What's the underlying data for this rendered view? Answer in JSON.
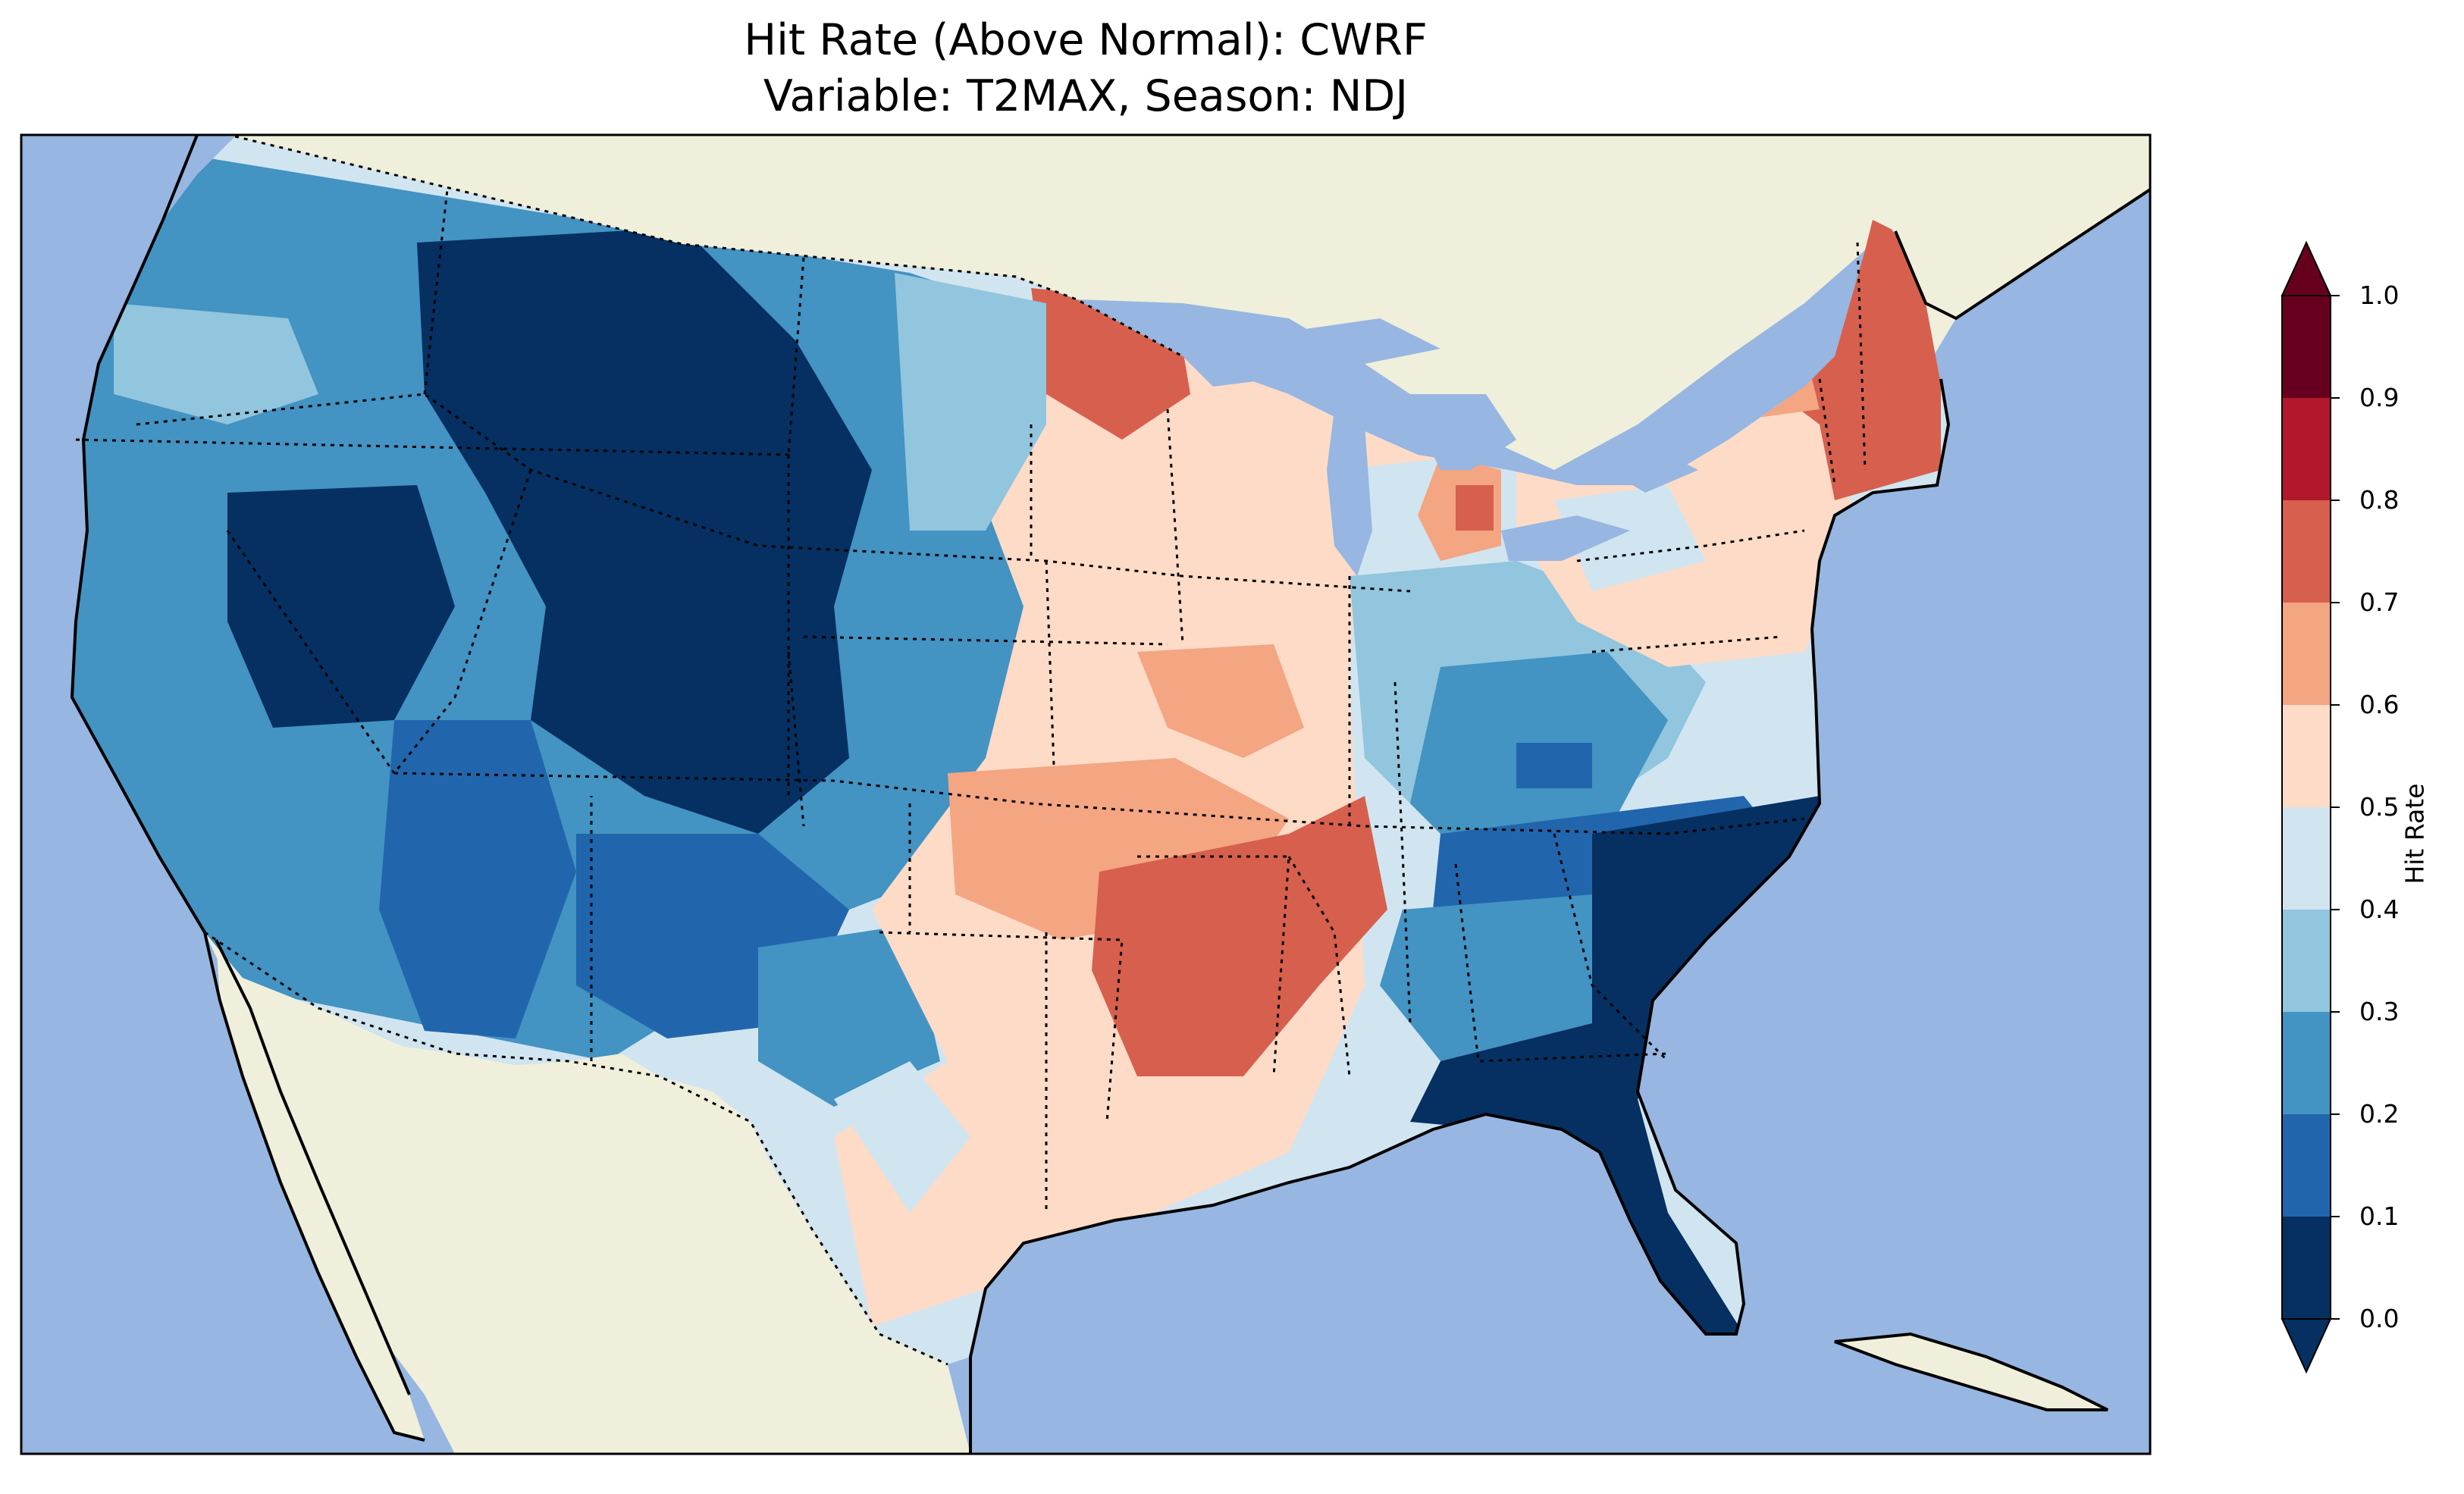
{
  "title": {
    "line1": "Hit Rate (Above Normal): CWRF",
    "line2": "Variable: T2MAX, Season: NDJ"
  },
  "colorbar": {
    "label": "Hit Rate",
    "ticks": [
      "0.0",
      "0.1",
      "0.2",
      "0.3",
      "0.4",
      "0.5",
      "0.6",
      "0.7",
      "0.8",
      "0.9",
      "1.0"
    ],
    "bins": [
      {
        "min": 0.0,
        "max": 0.1,
        "color": "#053061"
      },
      {
        "min": 0.1,
        "max": 0.2,
        "color": "#2166ac"
      },
      {
        "min": 0.2,
        "max": 0.3,
        "color": "#4393c3"
      },
      {
        "min": 0.3,
        "max": 0.4,
        "color": "#92c5de"
      },
      {
        "min": 0.4,
        "max": 0.5,
        "color": "#d1e5f0"
      },
      {
        "min": 0.5,
        "max": 0.6,
        "color": "#fddbc7"
      },
      {
        "min": 0.6,
        "max": 0.7,
        "color": "#f4a582"
      },
      {
        "min": 0.7,
        "max": 0.8,
        "color": "#d6604d"
      },
      {
        "min": 0.8,
        "max": 0.9,
        "color": "#b2182b"
      },
      {
        "min": 0.9,
        "max": 1.0,
        "color": "#67001f"
      }
    ],
    "extend": "both"
  },
  "colors": {
    "ocean": "#97b6e1",
    "land": "#efefdb"
  },
  "regions": [
    {
      "name": "pacific-northwest",
      "hit_rate": 0.25
    },
    {
      "name": "northern-rockies",
      "hit_rate": 0.05
    },
    {
      "name": "great-basin",
      "hit_rate": 0.15
    },
    {
      "name": "california",
      "hit_rate": 0.25
    },
    {
      "name": "desert-southwest",
      "hit_rate": 0.2
    },
    {
      "name": "southern-plains",
      "hit_rate": 0.55
    },
    {
      "name": "upper-midwest",
      "hit_rate": 0.55
    },
    {
      "name": "minnesota",
      "hit_rate": 0.75
    },
    {
      "name": "lower-mississippi-valley",
      "hit_rate": 0.75
    },
    {
      "name": "ohio-valley",
      "hit_rate": 0.35
    },
    {
      "name": "southeast",
      "hit_rate": 0.05
    },
    {
      "name": "northeast",
      "hit_rate": 0.55
    },
    {
      "name": "new-england",
      "hit_rate": 0.75
    }
  ]
}
